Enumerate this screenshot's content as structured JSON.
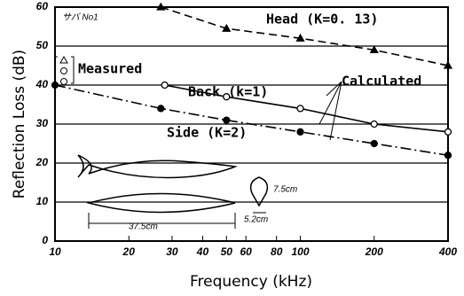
{
  "chart_data": {
    "type": "line",
    "x_label": "Frequency (kHz)",
    "y_label": "Reflection Loss (dB)",
    "xlim": [
      10,
      400
    ],
    "xticks": [
      10,
      20,
      30,
      40,
      50,
      60,
      80,
      100,
      200,
      400
    ],
    "log_x": true,
    "ylim": [
      0,
      60
    ],
    "yticks": [
      0,
      10,
      20,
      30,
      40,
      50,
      60
    ],
    "grid": true,
    "series": [
      {
        "name": "Head (K=0. 13)",
        "color": "#000000",
        "marker": "triangle",
        "line_style": "dashed",
        "x": [
          27,
          50,
          100,
          200,
          400
        ],
        "values": [
          60,
          54.5,
          52,
          49,
          45
        ]
      },
      {
        "name": "Back (k=1)",
        "color": "#000000",
        "marker": "open-circle",
        "line_style": "solid",
        "x": [
          28,
          50,
          100,
          200,
          400
        ],
        "values": [
          40,
          37,
          34,
          30,
          28
        ]
      },
      {
        "name": "Side (K=2)",
        "color": "#000000",
        "marker": "filled-circle",
        "line_style": "dashdot",
        "x": [
          10,
          27,
          50,
          100,
          200,
          400
        ],
        "values": [
          40,
          34,
          31,
          28,
          25,
          22
        ]
      }
    ],
    "annotations": {
      "species": "サバ No1",
      "measured": "Measured",
      "calculated": "Calculated",
      "length": "37.5cm",
      "height": "7.5cm",
      "width": "5.2cm"
    }
  }
}
